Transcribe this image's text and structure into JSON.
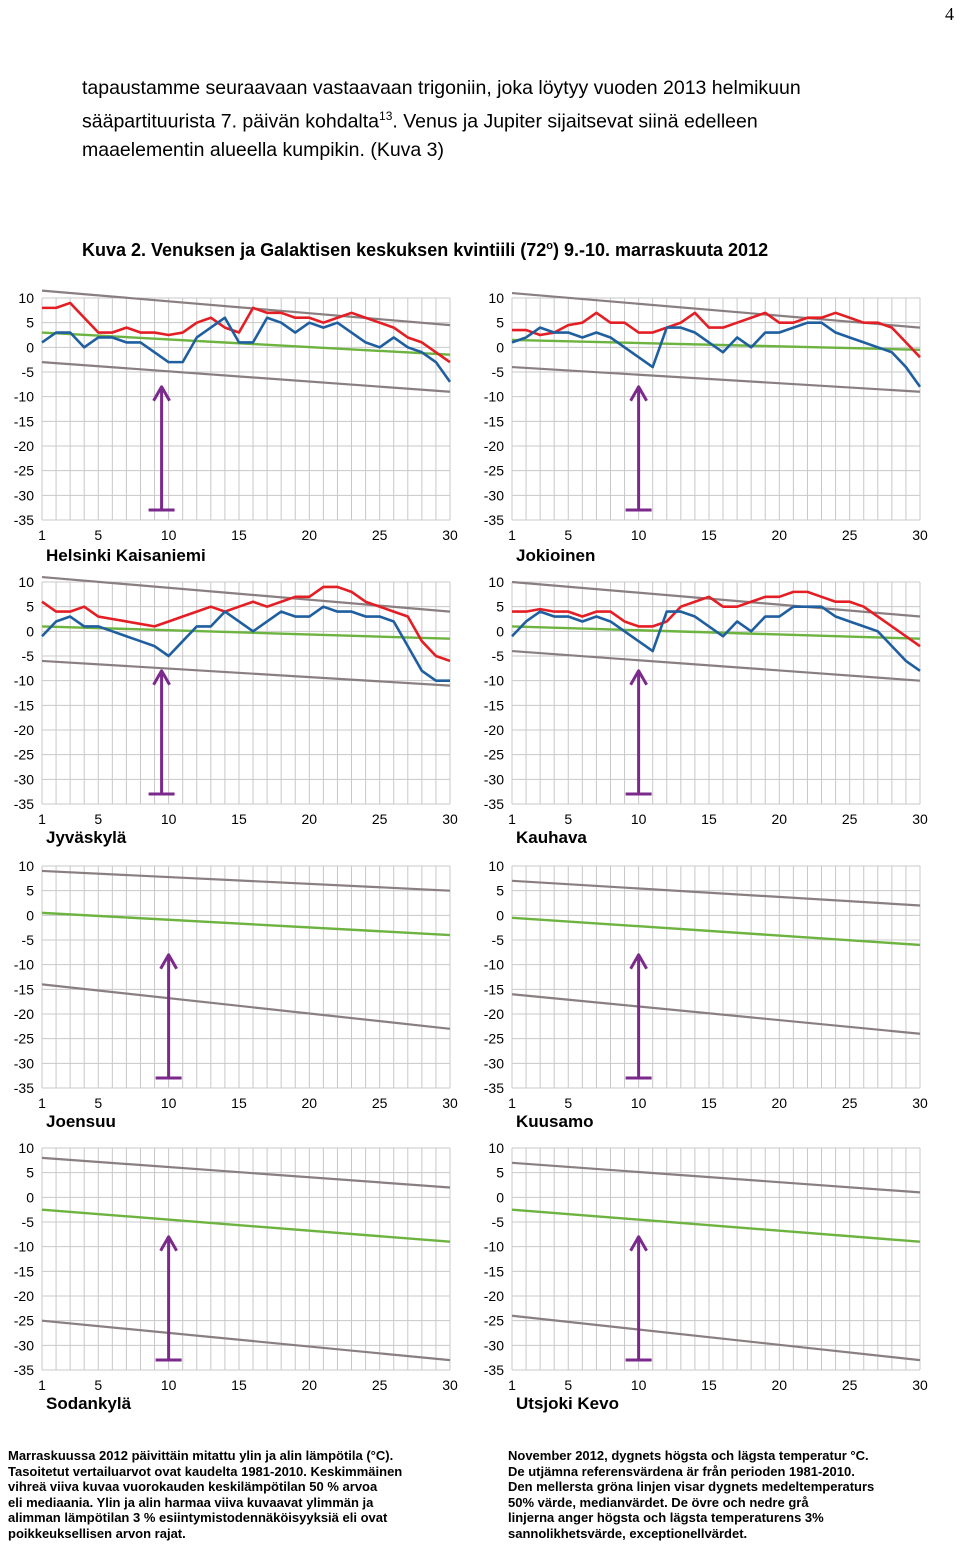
{
  "page_number": "4",
  "intro": {
    "line1": "tapaustamme seuraavaan vastaavaan trigoniin, joka löytyy vuoden 2013 helmikuun",
    "line2_pre": "sääpartituurista 7. päivän kohdalta",
    "line2_sup": "13",
    "line2_post": ". Venus ja Jupiter sijaitsevat siinä edelleen",
    "line3": "maaelementin alueella kumpikin. (Kuva 3)"
  },
  "caption": {
    "pre": "Kuva 2.  Venuksen ja Galaktisen keskuksen kvintiili (72",
    "sup": "o",
    "post": ") 9.-10. marraskuuta 2012"
  },
  "colors": {
    "max": "#e31e24",
    "min": "#1f5fa0",
    "median": "#6db33f",
    "extreme": "#8a7f80",
    "arrow": "#7b2a8c",
    "grid": "#c8c8c8"
  },
  "axes": {
    "y_ticks": [
      "10",
      "5",
      "0",
      "-5",
      "-10",
      "-15",
      "-20",
      "-25",
      "-30",
      "-35"
    ],
    "x_ticks": [
      "1",
      "5",
      "10",
      "15",
      "20",
      "25",
      "30"
    ]
  },
  "chart_data": [
    {
      "type": "line",
      "title": "Helsinki Kaisaniemi",
      "ylim": [
        -35,
        10
      ],
      "xlim": [
        1,
        30
      ],
      "arrow_day": 9.5,
      "extremes": {
        "upper": [
          11.5,
          4.5
        ],
        "lower": [
          -3,
          -9
        ]
      },
      "median": [
        3,
        -1.5
      ],
      "series": [
        {
          "values": [
            8,
            8,
            9,
            6,
            3,
            3,
            4,
            3,
            3,
            2.5,
            3,
            5,
            6,
            4,
            3,
            8,
            7,
            7,
            6,
            6,
            5,
            6,
            7,
            6,
            5,
            4,
            2,
            1,
            -1,
            -3
          ]
        },
        {
          "values": [
            1,
            3,
            3,
            0,
            2,
            2,
            1,
            1,
            -1,
            -3,
            -3,
            2,
            4,
            6,
            1,
            1,
            6,
            5,
            3,
            5,
            4,
            5,
            3,
            1,
            0,
            2,
            0,
            -1,
            -3,
            -7
          ]
        }
      ]
    },
    {
      "type": "line",
      "title": "Jokioinen",
      "ylim": [
        -35,
        10
      ],
      "xlim": [
        1,
        30
      ],
      "arrow_day": 10,
      "extremes": {
        "upper": [
          11,
          4
        ],
        "lower": [
          -4,
          -9
        ]
      },
      "median": [
        1.5,
        -0.5
      ],
      "series": [
        {
          "values": [
            3.5,
            3.5,
            2.5,
            3,
            4.5,
            5,
            7,
            5,
            5,
            3,
            3,
            4,
            5,
            7,
            4,
            4,
            5,
            6,
            7,
            5,
            5,
            6,
            6,
            7,
            6,
            5,
            5,
            4,
            1,
            -2
          ]
        },
        {
          "values": [
            1,
            2,
            4,
            3,
            3,
            2,
            3,
            2,
            0,
            -2,
            -4,
            4,
            4,
            3,
            1,
            -1,
            2,
            0,
            3,
            3,
            4,
            5,
            5,
            3,
            2,
            1,
            0,
            -1,
            -4,
            -8
          ]
        }
      ]
    },
    {
      "type": "line",
      "title": "Jyväskylä",
      "ylim": [
        -35,
        10
      ],
      "xlim": [
        1,
        30
      ],
      "arrow_day": 9.5,
      "extremes": {
        "upper": [
          11,
          4
        ],
        "lower": [
          -6,
          -11
        ]
      },
      "median": [
        1,
        -1.5
      ],
      "series": [
        {
          "values": [
            6,
            4,
            4,
            5,
            3,
            2.5,
            2,
            1.5,
            1,
            2,
            3,
            4,
            5,
            4,
            5,
            6,
            5,
            6,
            7,
            7,
            9,
            9,
            8,
            6,
            5,
            4,
            3,
            -2,
            -5,
            -6
          ]
        },
        {
          "values": [
            -1,
            2,
            3,
            1,
            1,
            0,
            -1,
            -2,
            -3,
            -5,
            -2,
            1,
            1,
            4,
            2,
            0,
            2,
            4,
            3,
            3,
            5,
            4,
            4,
            3,
            3,
            2,
            -3,
            -8,
            -10,
            -10
          ]
        }
      ]
    },
    {
      "type": "line",
      "title": "Kauhava",
      "ylim": [
        -35,
        10
      ],
      "xlim": [
        1,
        30
      ],
      "arrow_day": 10,
      "extremes": {
        "upper": [
          10,
          3
        ],
        "lower": [
          -4,
          -10
        ]
      },
      "median": [
        1,
        -1.5
      ],
      "series": [
        {
          "values": [
            4,
            4,
            4.5,
            4,
            4,
            3,
            4,
            4,
            2,
            1,
            1,
            2,
            5,
            6,
            7,
            5,
            5,
            6,
            7,
            7,
            8,
            8,
            7,
            6,
            6,
            5,
            3,
            1,
            -1,
            -3
          ]
        },
        {
          "values": [
            -1,
            2,
            4,
            3,
            3,
            2,
            3,
            2,
            0,
            -2,
            -4,
            4,
            4,
            3,
            1,
            -1,
            2,
            0,
            3,
            3,
            5,
            5,
            5,
            3,
            2,
            1,
            0,
            -3,
            -6,
            -8
          ]
        }
      ]
    },
    {
      "type": "line",
      "title": "Joensuu",
      "ylim": [
        -35,
        10
      ],
      "xlim": [
        1,
        30
      ],
      "arrow_day": 10,
      "extremes": {
        "upper": [
          9,
          5
        ],
        "lower": [
          -14,
          -23
        ]
      },
      "median": [
        0.5,
        -4
      ]
    },
    {
      "type": "line",
      "title": "Kuusamo",
      "ylim": [
        -35,
        10
      ],
      "xlim": [
        1,
        30
      ],
      "arrow_day": 10,
      "extremes": {
        "upper": [
          7,
          2
        ],
        "lower": [
          -16,
          -24
        ]
      },
      "median": [
        -0.5,
        -6
      ]
    },
    {
      "type": "line",
      "title": "Sodankylä",
      "ylim": [
        -35,
        10
      ],
      "xlim": [
        1,
        30
      ],
      "arrow_day": 10,
      "extremes": {
        "upper": [
          8,
          2
        ],
        "lower": [
          -25,
          -33
        ]
      },
      "median": [
        -2.5,
        -9
      ]
    },
    {
      "type": "line",
      "title": "Utsjoki Kevo",
      "ylim": [
        -35,
        10
      ],
      "xlim": [
        1,
        30
      ],
      "arrow_day": 10,
      "extremes": {
        "upper": [
          7,
          1
        ],
        "lower": [
          -24,
          -33
        ]
      },
      "median": [
        -2.5,
        -9
      ]
    }
  ],
  "notes": {
    "fi": [
      "Marraskuussa 2012 päivittäin mitattu ylin ja alin lämpötila (°C).",
      "Tasoitetut vertailuarvot ovat kaudelta 1981-2010. Keskimmäinen",
      "vihreä viiva kuvaa vuorokauden keskilämpötilan 50 % arvoa",
      "eli mediaania. Ylin ja alin harmaa viiva kuvaavat ylimmän ja",
      "alimman lämpötilan 3 % esiintymistodennäköisyyksiä eli ovat",
      "poikkeuksellisen arvon rajat."
    ],
    "sv": [
      "November 2012, dygnets högsta och lägsta temperatur °C.",
      "De utjämna referensvärdena är från perioden 1981-2010.",
      "Den mellersta gröna linjen visar dygnets medeltemperaturs",
      "50% värde, medianvärdet. De övre och nedre grå",
      "linjerna anger högsta och lägsta temperaturens 3%",
      "sannolikhetsvärde, exceptionellvärdet."
    ]
  }
}
